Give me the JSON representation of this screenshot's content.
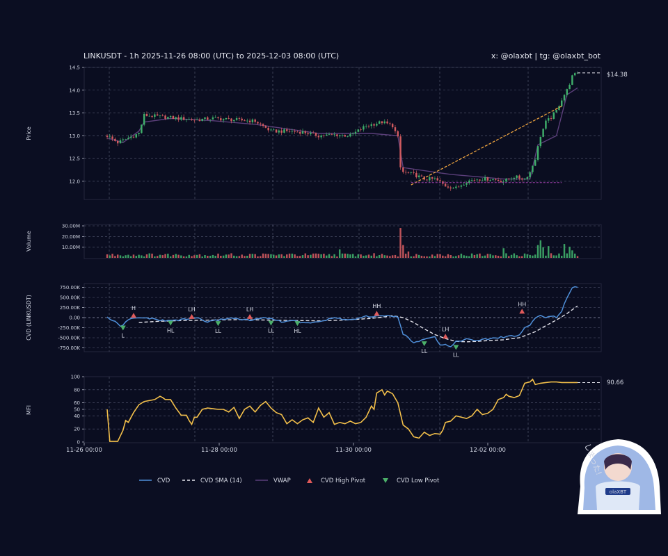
{
  "header": {
    "title": "LINKUSDT - 1h 2025-11-26 08:00 (UTC) to 2025-12-03 08:00 (UTC)",
    "credit": "x: @olaxbt | tg: @olaxbt_bot"
  },
  "colors": {
    "background": "#0b0e22",
    "up": "#3fae6a",
    "down": "#d05a5f",
    "cvd": "#4f8fd9",
    "cvd_sma": "#e6e6ee",
    "vwap": "#5b3f7a",
    "mfi": "#f2bf4a",
    "trend": "#f0a540",
    "support": "#9b3fa8",
    "high_pivot": "#e05a5a",
    "low_pivot": "#4caf6a"
  },
  "mascot": {
    "caption": "しまった!",
    "badge": "olaXBT"
  },
  "chart_data": [
    {
      "panel": "price",
      "type": "candlestick",
      "ylabel": "Price",
      "ylim": [
        11.6,
        14.5
      ],
      "yticks": [
        "12.0",
        "12.5",
        "13.0",
        "13.5",
        "14.0",
        "14.5"
      ],
      "last_price_label": "$14.38",
      "anchors": {
        "time": [
          0,
          4,
          8,
          12,
          14,
          20,
          27,
          34,
          40,
          48,
          56,
          62,
          68,
          74,
          80,
          86,
          92,
          98,
          104,
          108,
          110,
          111,
          112,
          116,
          120,
          124,
          128,
          132,
          136,
          140,
          145,
          150,
          154,
          158,
          160,
          162,
          164,
          166,
          168,
          170,
          172,
          174,
          176,
          178
        ],
        "close": [
          13.0,
          12.85,
          12.95,
          13.05,
          13.45,
          13.42,
          13.38,
          13.35,
          13.38,
          13.35,
          13.32,
          13.1,
          13.1,
          13.08,
          13.0,
          13.02,
          13.0,
          13.22,
          13.3,
          13.22,
          12.95,
          12.3,
          12.2,
          12.15,
          12.05,
          12.05,
          11.9,
          11.85,
          12.0,
          12.05,
          12.05,
          12.0,
          12.1,
          12.05,
          12.2,
          12.5,
          13.0,
          13.3,
          13.4,
          13.55,
          13.8,
          14.0,
          14.3,
          14.38
        ]
      },
      "vwap": {
        "time": [
          0,
          6,
          12,
          14,
          24,
          40,
          56,
          80,
          100,
          110,
          112,
          130,
          150,
          160,
          163,
          170,
          174,
          178
        ],
        "values": [
          12.95,
          12.85,
          13.1,
          13.3,
          13.38,
          13.33,
          13.25,
          13.05,
          13.05,
          13.0,
          12.3,
          12.15,
          12.05,
          12.05,
          12.8,
          13.0,
          13.9,
          14.05
        ]
      },
      "trendline": {
        "from": [
          115,
          11.92
        ],
        "to": [
          172,
          13.65
        ]
      },
      "support_level": {
        "from": [
          115,
          11.97
        ],
        "to": [
          172,
          11.97
        ]
      }
    },
    {
      "panel": "volume",
      "type": "bar",
      "ylabel": "Volume",
      "ylim": [
        0,
        30000000
      ],
      "yticks": [
        "10.00M",
        "20.00M",
        "30.00M"
      ],
      "spikes": [
        {
          "time": 111,
          "value": 28000000
        },
        {
          "time": 112,
          "value": 12000000
        },
        {
          "time": 114,
          "value": 6000000
        },
        {
          "time": 88,
          "value": 8000000
        },
        {
          "time": 150,
          "value": 9000000
        },
        {
          "time": 163,
          "value": 12000000
        },
        {
          "time": 164,
          "value": 16500000
        },
        {
          "time": 165,
          "value": 10000000
        },
        {
          "time": 167,
          "value": 11000000
        },
        {
          "time": 173,
          "value": 13000000
        },
        {
          "time": 175,
          "value": 10500000
        },
        {
          "time": 176,
          "value": 7000000
        }
      ]
    },
    {
      "panel": "cvd",
      "type": "line",
      "ylabel": "CVD (LINKUSDT)",
      "ylim": [
        -800000,
        800000
      ],
      "yticks": [
        "-750.00K",
        "-500.00K",
        "-250.00K",
        "0.00",
        "250.00K",
        "500.00K",
        "750.00K"
      ],
      "cvd": {
        "time": [
          0,
          3,
          5,
          8,
          10,
          14,
          18,
          22,
          26,
          30,
          34,
          38,
          42,
          46,
          50,
          54,
          58,
          62,
          66,
          70,
          74,
          78,
          82,
          86,
          90,
          94,
          98,
          100,
          104,
          108,
          110,
          112,
          116,
          120,
          124,
          126,
          128,
          130,
          132,
          136,
          140,
          144,
          148,
          152,
          156,
          158,
          160,
          162,
          164,
          166,
          168,
          170,
          172,
          174,
          176,
          178
        ],
        "values": [
          0,
          -100000,
          -230000,
          -60000,
          -20000,
          0,
          -40000,
          -80000,
          -60000,
          -40000,
          0,
          -110000,
          -60000,
          -10000,
          -30000,
          -70000,
          -20000,
          -10000,
          -110000,
          -60000,
          -140000,
          -110000,
          -80000,
          0,
          -50000,
          -40000,
          30000,
          0,
          60000,
          20000,
          0,
          -400000,
          -630000,
          -520000,
          -460000,
          -690000,
          -650000,
          -730000,
          -590000,
          -540000,
          -570000,
          -530000,
          -500000,
          -460000,
          -440000,
          -250000,
          -190000,
          0,
          50000,
          0,
          50000,
          -10000,
          150000,
          500000,
          760000,
          760000
        ]
      },
      "cvd_sma": {
        "time": [
          12,
          20,
          30,
          40,
          50,
          60,
          70,
          80,
          90,
          100,
          105,
          108,
          112,
          116,
          120,
          124,
          128,
          132,
          136,
          140,
          144,
          150,
          156,
          162,
          166,
          170,
          174,
          178
        ],
        "values": [
          -120000,
          -90000,
          -70000,
          -60000,
          -50000,
          -60000,
          -70000,
          -80000,
          -60000,
          -20000,
          20000,
          50000,
          0,
          -120000,
          -280000,
          -420000,
          -520000,
          -590000,
          -600000,
          -590000,
          -570000,
          -550000,
          -500000,
          -350000,
          -200000,
          -60000,
          100000,
          290000
        ]
      },
      "pivots": [
        {
          "time": 6,
          "value": -250000,
          "label": "L",
          "kind": "low"
        },
        {
          "time": 10,
          "value": 50000,
          "label": "H",
          "kind": "high"
        },
        {
          "time": 24,
          "value": -130000,
          "label": "HL",
          "kind": "low"
        },
        {
          "time": 32,
          "value": 20000,
          "label": "LH",
          "kind": "high"
        },
        {
          "time": 42,
          "value": -140000,
          "label": "LL",
          "kind": "low"
        },
        {
          "time": 54,
          "value": 20000,
          "label": "LH",
          "kind": "high"
        },
        {
          "time": 62,
          "value": -130000,
          "label": "LL",
          "kind": "low"
        },
        {
          "time": 72,
          "value": -140000,
          "label": "HL",
          "kind": "low"
        },
        {
          "time": 102,
          "value": 100000,
          "label": "HH",
          "kind": "high"
        },
        {
          "time": 120,
          "value": -640000,
          "label": "LL",
          "kind": "low"
        },
        {
          "time": 128,
          "value": -470000,
          "label": "LH",
          "kind": "high"
        },
        {
          "time": 132,
          "value": -730000,
          "label": "LL",
          "kind": "low"
        },
        {
          "time": 157,
          "value": 150000,
          "label": "HH",
          "kind": "high"
        }
      ]
    },
    {
      "panel": "mfi",
      "type": "line",
      "ylabel": "MFI",
      "ylim": [
        0,
        100
      ],
      "yticks": [
        "0",
        "20",
        "40",
        "50",
        "60",
        "80",
        "100"
      ],
      "last_value_label": "90.66",
      "mfi": {
        "time": [
          0,
          1,
          2,
          3,
          4,
          6,
          7,
          8,
          10,
          12,
          14,
          18,
          20,
          21,
          22,
          24,
          26,
          28,
          30,
          31,
          32,
          33,
          34,
          36,
          38,
          40,
          42,
          44,
          46,
          48,
          50,
          52,
          54,
          56,
          58,
          60,
          62,
          64,
          66,
          68,
          70,
          72,
          74,
          76,
          78,
          80,
          82,
          84,
          86,
          88,
          90,
          92,
          94,
          96,
          98,
          100,
          101,
          102,
          104,
          105,
          106,
          108,
          110,
          112,
          114,
          116,
          118,
          120,
          122,
          124,
          126,
          127,
          128,
          130,
          132,
          134,
          136,
          138,
          140,
          142,
          144,
          146,
          148,
          150,
          151,
          152,
          154,
          156,
          158,
          160,
          161,
          162,
          164,
          166,
          168,
          170,
          172,
          174,
          176,
          178
        ],
        "values": [
          50,
          1,
          1,
          1,
          1,
          18,
          33,
          30,
          45,
          57,
          62,
          65,
          70,
          68,
          65,
          65,
          52,
          41,
          41,
          33,
          27,
          38,
          38,
          50,
          52,
          51,
          50,
          50,
          46,
          53,
          36,
          50,
          55,
          46,
          56,
          62,
          52,
          45,
          42,
          28,
          34,
          28,
          34,
          37,
          30,
          52,
          38,
          45,
          27,
          30,
          28,
          32,
          28,
          30,
          38,
          55,
          50,
          75,
          80,
          72,
          78,
          74,
          60,
          26,
          20,
          8,
          6,
          15,
          10,
          13,
          12,
          18,
          30,
          32,
          40,
          38,
          36,
          40,
          50,
          42,
          44,
          50,
          65,
          68,
          73,
          70,
          68,
          71,
          90,
          92,
          96,
          88,
          90,
          91,
          92,
          92,
          91,
          91,
          91,
          91
        ]
      }
    }
  ],
  "xaxis": {
    "labels": [
      "11-26 00:00",
      "11-28 00:00",
      "11-30 00:00",
      "12-02 00:00"
    ]
  },
  "legend": [
    {
      "label": "CVD",
      "kind": "line"
    },
    {
      "label": "CVD SMA (14)",
      "kind": "dashed"
    },
    {
      "label": "VWAP",
      "kind": "vwap"
    },
    {
      "label": "CVD High Pivot",
      "kind": "tri-up"
    },
    {
      "label": "CVD Low Pivot",
      "kind": "tri-down"
    }
  ]
}
